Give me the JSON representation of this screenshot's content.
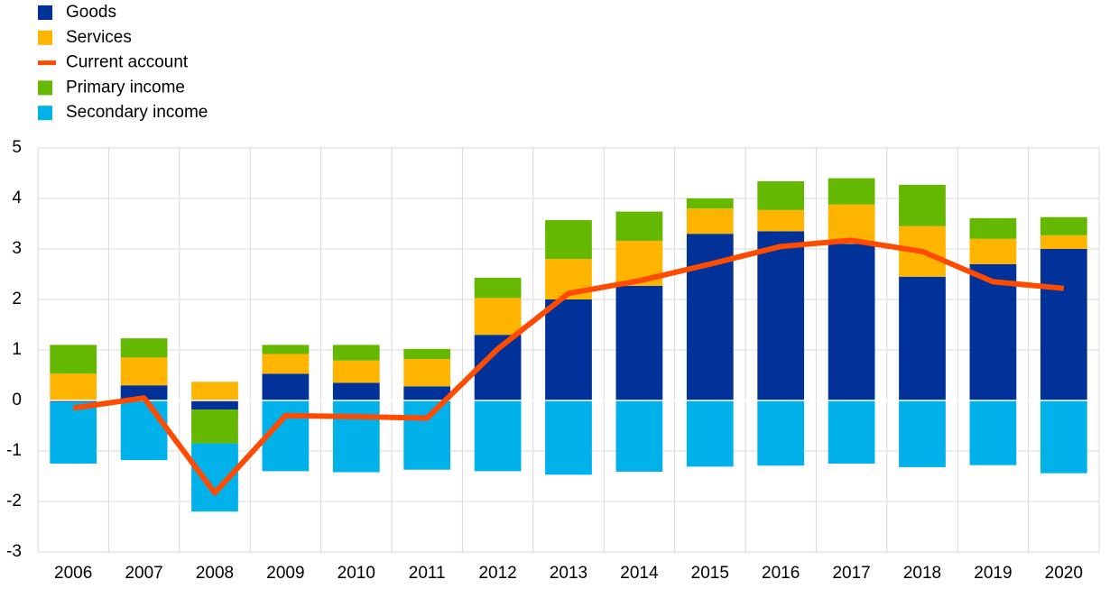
{
  "chart_data": {
    "type": "bar",
    "stacked": true,
    "categories": [
      "2006",
      "2007",
      "2008",
      "2009",
      "2010",
      "2011",
      "2012",
      "2013",
      "2014",
      "2015",
      "2016",
      "2017",
      "2018",
      "2019",
      "2020"
    ],
    "series": [
      {
        "name": "Goods",
        "color": "#003299",
        "values": [
          -0.03,
          0.3,
          -0.18,
          0.53,
          0.35,
          0.28,
          1.3,
          2.0,
          2.27,
          3.3,
          3.35,
          3.1,
          2.45,
          2.7,
          3.0
        ]
      },
      {
        "name": "Services",
        "color": "#ffb400",
        "values": [
          0.53,
          0.55,
          0.37,
          0.39,
          0.44,
          0.54,
          0.73,
          0.8,
          0.89,
          0.5,
          0.42,
          0.78,
          1.0,
          0.5,
          0.27
        ]
      },
      {
        "name": "Current account",
        "color": "#ff4b00",
        "type": "line",
        "values": [
          -0.15,
          0.05,
          -1.83,
          -0.3,
          -0.32,
          -0.35,
          1.02,
          2.12,
          2.37,
          2.7,
          3.05,
          3.17,
          2.95,
          2.35,
          2.22
        ]
      },
      {
        "name": "Primary income",
        "color": "#65b800",
        "values": [
          0.57,
          0.38,
          -0.67,
          0.18,
          0.31,
          0.2,
          0.4,
          0.77,
          0.58,
          0.2,
          0.57,
          0.52,
          0.82,
          0.41,
          0.36
        ]
      },
      {
        "name": "Secondary income",
        "color": "#00b1ea",
        "values": [
          -1.22,
          -1.18,
          -1.35,
          -1.4,
          -1.42,
          -1.37,
          -1.4,
          -1.47,
          -1.41,
          -1.31,
          -1.29,
          -1.25,
          -1.32,
          -1.28,
          -1.44
        ]
      }
    ],
    "ylim": [
      -3,
      5
    ],
    "yticks": [
      -3,
      -2,
      -1,
      0,
      1,
      2,
      3,
      4,
      5
    ],
    "grid": true
  }
}
